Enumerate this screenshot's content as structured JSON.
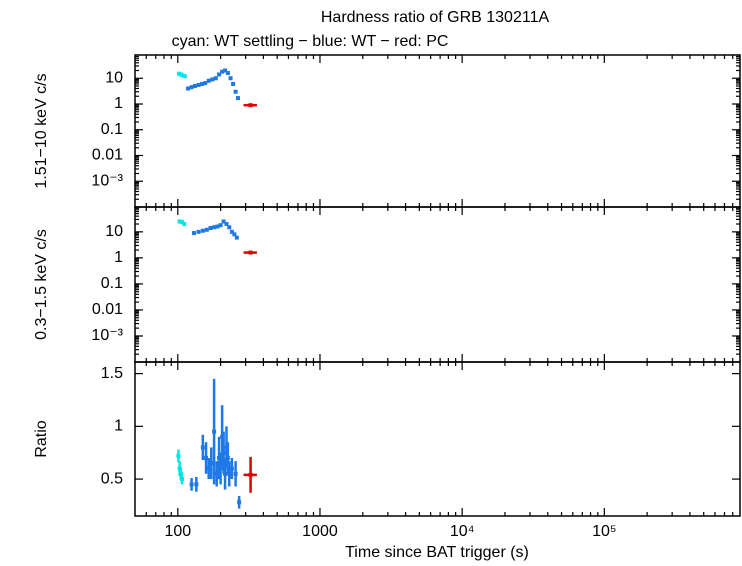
{
  "chart_data": [
    {
      "type": "scatter",
      "title": "Hardness ratio of GRB 130211A",
      "subtitle": "cyan: WT settling − blue: WT − red: PC",
      "y_label": "1.51−10 keV c/s",
      "log_x": true,
      "log_y": true,
      "xlim": [
        50,
        900000
      ],
      "xticks": [
        100,
        1000,
        10000,
        100000
      ],
      "ylim": [
        0.0001,
        80
      ],
      "yticks": [
        10,
        1,
        0.1,
        0.01,
        {
          "value": 0.001,
          "label": "10⁻³"
        }
      ],
      "series": [
        {
          "color": "#00e5e5",
          "x": [
            102,
            105,
            108,
            112
          ],
          "values": [
            15,
            14,
            13,
            12
          ]
        },
        {
          "color": "#1e78e6",
          "x": [
            118,
            125,
            132,
            140,
            148,
            156,
            165,
            175,
            185,
            195,
            205,
            215,
            225,
            235,
            245,
            255,
            265
          ],
          "values": [
            4,
            4.5,
            5,
            5.5,
            6,
            6.5,
            8,
            9,
            10,
            14,
            18,
            20,
            16,
            10,
            6,
            3,
            1.7
          ]
        },
        {
          "color": "#e00000",
          "x": [
            325
          ],
          "values": [
            0.9
          ],
          "xerr": [
            35
          ]
        }
      ]
    },
    {
      "type": "scatter",
      "y_label": "0.3−1.5 keV c/s",
      "log_x": true,
      "log_y": true,
      "xlim": [
        50,
        900000
      ],
      "xticks": [
        100,
        1000,
        10000,
        100000
      ],
      "ylim": [
        0.0001,
        90
      ],
      "yticks": [
        10,
        1,
        0.1,
        0.01,
        {
          "value": 0.001,
          "label": "10⁻³"
        }
      ],
      "series": [
        {
          "color": "#00e5e5",
          "x": [
            103,
            107,
            111
          ],
          "values": [
            25,
            24,
            20
          ]
        },
        {
          "color": "#1e78e6",
          "x": [
            130,
            140,
            150,
            160,
            170,
            180,
            190,
            200,
            210,
            220,
            230,
            240,
            250,
            260
          ],
          "values": [
            9,
            10,
            11,
            12,
            14,
            15,
            16,
            18,
            25,
            20,
            15,
            10,
            8,
            6
          ]
        },
        {
          "color": "#e00000",
          "x": [
            325
          ],
          "values": [
            1.6
          ],
          "xerr": [
            35
          ]
        }
      ]
    },
    {
      "type": "scatter",
      "y_label": "Ratio",
      "x_label": "Time since BAT trigger (s)",
      "log_x": true,
      "log_y": false,
      "xlim": [
        50,
        900000
      ],
      "xticks": [
        100,
        1000,
        {
          "value": 10000,
          "label": "10⁴"
        },
        {
          "value": 100000,
          "label": "10⁵"
        }
      ],
      "ylim": [
        0.15,
        1.61
      ],
      "yticks": [
        0.5,
        1,
        1.5
      ],
      "series": [
        {
          "color": "#00e5e5",
          "x": [
            101,
            103,
            105,
            107
          ],
          "values": [
            0.72,
            0.6,
            0.55,
            0.5
          ],
          "yerr": [
            0.06,
            0.07,
            0.06,
            0.05
          ]
        },
        {
          "color": "#1e78e6",
          "x": [
            125,
            135,
            150,
            158,
            165,
            172,
            180,
            188,
            195,
            200,
            205,
            210,
            215,
            220,
            225,
            230,
            240,
            255,
            270
          ],
          "values": [
            0.45,
            0.45,
            0.8,
            0.7,
            0.6,
            0.65,
            0.95,
            0.55,
            0.7,
            0.6,
            0.9,
            0.75,
            0.55,
            0.8,
            0.7,
            0.55,
            0.6,
            0.55,
            0.28
          ],
          "yerr": [
            0.06,
            0.07,
            0.12,
            0.15,
            0.1,
            0.15,
            0.5,
            0.12,
            0.2,
            0.15,
            0.3,
            0.2,
            0.15,
            0.2,
            0.15,
            0.12,
            0.1,
            0.12,
            0.06
          ]
        },
        {
          "color": "#e00000",
          "x": [
            325
          ],
          "values": [
            0.54
          ],
          "xerr": [
            35
          ],
          "yerr": [
            0.17
          ]
        }
      ]
    }
  ]
}
